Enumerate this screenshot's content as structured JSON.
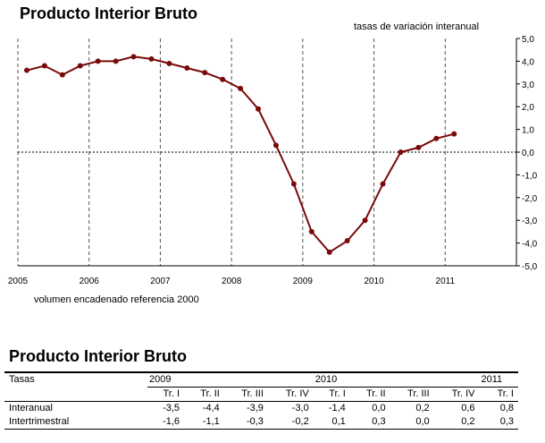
{
  "chart": {
    "title": "Producto Interior Bruto",
    "subtitle": "tasas de variación interanual",
    "footnote": "volumen encadenado referencia 2000"
  },
  "chart_data": {
    "type": "line",
    "x": [
      2005.125,
      2005.375,
      2005.625,
      2005.875,
      2006.125,
      2006.375,
      2006.625,
      2006.875,
      2007.125,
      2007.375,
      2007.625,
      2007.875,
      2008.125,
      2008.375,
      2008.625,
      2008.875,
      2009.125,
      2009.375,
      2009.625,
      2009.875,
      2010.125,
      2010.375,
      2010.625,
      2010.875,
      2011.125
    ],
    "y": [
      3.6,
      3.8,
      3.4,
      3.8,
      4.0,
      4.0,
      4.2,
      4.1,
      3.9,
      3.7,
      3.5,
      3.2,
      2.8,
      1.9,
      0.3,
      -1.4,
      -3.5,
      -4.4,
      -3.9,
      -3.0,
      -1.4,
      0.0,
      0.2,
      0.6,
      0.8
    ],
    "xticks": [
      "2005",
      "2006",
      "2007",
      "2008",
      "2009",
      "2010",
      "2011"
    ],
    "xlim": [
      2005,
      2012
    ],
    "yticks": [
      "5,0",
      "4,0",
      "3,0",
      "2,0",
      "1,0",
      "0,0",
      "-1,0",
      "-2,0",
      "-3,0",
      "-4,0",
      "-5,0"
    ],
    "ylim": [
      -5,
      5
    ],
    "grid": "vertical dashed at year starts, dotted zero line",
    "line_color": "#7a0a0a"
  },
  "table": {
    "title": "Producto Interior Bruto",
    "col_header": "Tasas",
    "years": [
      "2009",
      "2010",
      "2011"
    ],
    "quarters": [
      "Tr. I",
      "Tr. II",
      "Tr. III",
      "Tr. IV",
      "Tr. I",
      "Tr. II",
      "Tr. III",
      "Tr. IV",
      "Tr. I"
    ],
    "rows": [
      {
        "label": "Interanual",
        "values": [
          "-3,5",
          "-4,4",
          "-3,9",
          "-3,0",
          "-1,4",
          "0,0",
          "0,2",
          "0,6",
          "0,8"
        ]
      },
      {
        "label": "Intertrimestral",
        "values": [
          "-1,6",
          "-1,1",
          "-0,3",
          "-0,2",
          "0,1",
          "0,3",
          "0,0",
          "0,2",
          "0,3"
        ]
      }
    ]
  }
}
